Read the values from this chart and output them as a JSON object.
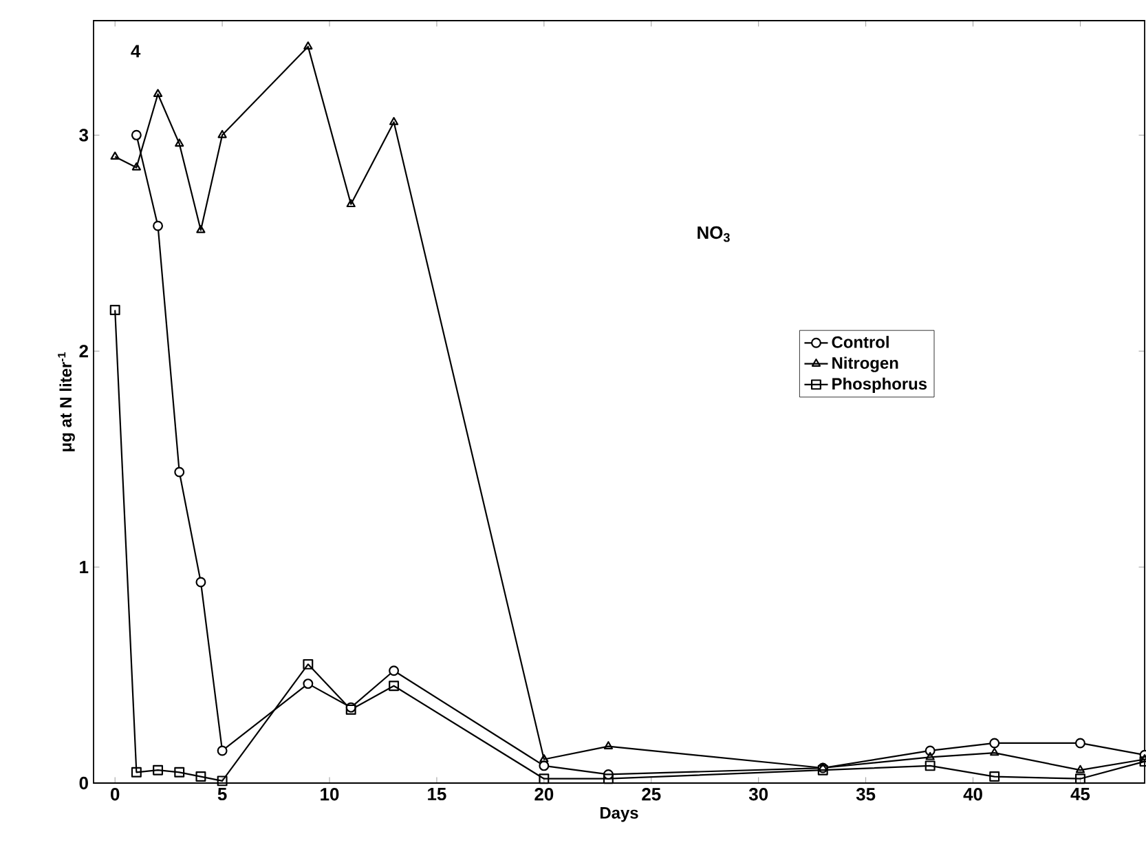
{
  "chart_data": {
    "type": "line",
    "title": "NO$_{3}$",
    "xlabel": "Days",
    "ylabel": "μg at N liter$^{-1}$",
    "annotations": [
      "4"
    ],
    "x": [
      0,
      1,
      2,
      3,
      4,
      5,
      9,
      11,
      13,
      20,
      23,
      33,
      38,
      41,
      45,
      48
    ],
    "series": [
      {
        "name": "Control",
        "color": "#000000",
        "marker": "circle",
        "values": [
          null,
          3.0,
          2.58,
          1.44,
          0.93,
          0.15,
          0.46,
          0.35,
          0.52,
          0.08,
          0.04,
          0.07,
          0.15,
          0.185,
          0.185,
          0.13
        ]
      },
      {
        "name": "Nitrogen",
        "color": "#000000",
        "marker": "triangle",
        "values": [
          2.9,
          2.85,
          3.19,
          2.96,
          2.56,
          3.0,
          3.41,
          2.68,
          3.06,
          0.11,
          0.17,
          0.07,
          0.12,
          0.14,
          0.06,
          0.11
        ]
      },
      {
        "name": "Phosphorus",
        "color": "#000000",
        "marker": "square",
        "values": [
          2.19,
          0.05,
          0.06,
          0.05,
          0.03,
          0.01,
          0.55,
          0.34,
          0.45,
          0.02,
          0.02,
          0.06,
          0.08,
          0.03,
          0.02,
          0.1
        ]
      }
    ],
    "xlim": [
      -1,
      48
    ],
    "ylim": [
      0,
      3.53
    ],
    "xticks": [
      0,
      5,
      10,
      15,
      20,
      25,
      30,
      35,
      40,
      45
    ],
    "yticks": [
      0,
      1,
      2,
      3
    ],
    "legend": "right",
    "line_style": "solid"
  }
}
